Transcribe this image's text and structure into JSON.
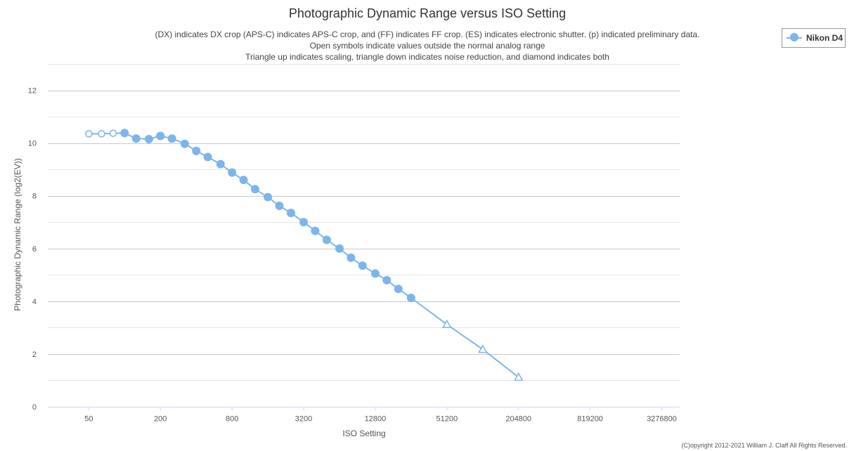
{
  "chart_data": {
    "type": "line",
    "title": "Photographic Dynamic Range versus ISO Setting",
    "subtitle": [
      "(DX) indicates DX crop (APS-C) indicates APS-C crop, and (FF) indicates FF crop. (ES) indicates electronic shutter. (p) indicated preliminary data.",
      "Open symbols indicate values outside the normal analog range",
      "Triangle up indicates scaling, triangle down indicates noise reduction, and diamond indicates both"
    ],
    "xlabel": "ISO Setting",
    "ylabel": "Photographic Dynamic Range (log2(EV))",
    "x_scale": "log2",
    "xlim": [
      22.6,
      4637000
    ],
    "ylim": [
      0,
      13
    ],
    "x_ticks": [
      50,
      200,
      800,
      3200,
      12800,
      51200,
      204800,
      819200,
      3276800
    ],
    "y_ticks": [
      0,
      2,
      4,
      6,
      8,
      10,
      12
    ],
    "grid": true,
    "legend_position": "top-right",
    "series": [
      {
        "name": "Nikon D4",
        "color": "#7cb5ec",
        "points": [
          {
            "x": 50,
            "y": 10.35,
            "marker": "circle-open"
          },
          {
            "x": 64,
            "y": 10.35,
            "marker": "circle-open"
          },
          {
            "x": 80,
            "y": 10.37,
            "marker": "circle-open"
          },
          {
            "x": 100,
            "y": 10.38,
            "marker": "circle"
          },
          {
            "x": 125,
            "y": 10.17,
            "marker": "circle"
          },
          {
            "x": 160,
            "y": 10.15,
            "marker": "circle"
          },
          {
            "x": 200,
            "y": 10.27,
            "marker": "circle"
          },
          {
            "x": 250,
            "y": 10.17,
            "marker": "circle"
          },
          {
            "x": 320,
            "y": 9.97,
            "marker": "circle"
          },
          {
            "x": 400,
            "y": 9.7,
            "marker": "circle"
          },
          {
            "x": 500,
            "y": 9.47,
            "marker": "circle"
          },
          {
            "x": 640,
            "y": 9.2,
            "marker": "circle"
          },
          {
            "x": 800,
            "y": 8.88,
            "marker": "circle"
          },
          {
            "x": 1000,
            "y": 8.6,
            "marker": "circle"
          },
          {
            "x": 1250,
            "y": 8.25,
            "marker": "circle"
          },
          {
            "x": 1600,
            "y": 7.95,
            "marker": "circle"
          },
          {
            "x": 2000,
            "y": 7.62,
            "marker": "circle"
          },
          {
            "x": 2500,
            "y": 7.35,
            "marker": "circle"
          },
          {
            "x": 3200,
            "y": 7.0,
            "marker": "circle"
          },
          {
            "x": 4000,
            "y": 6.67,
            "marker": "circle"
          },
          {
            "x": 5000,
            "y": 6.33,
            "marker": "circle"
          },
          {
            "x": 6400,
            "y": 6.0,
            "marker": "circle"
          },
          {
            "x": 8000,
            "y": 5.65,
            "marker": "circle"
          },
          {
            "x": 10000,
            "y": 5.35,
            "marker": "circle"
          },
          {
            "x": 12800,
            "y": 5.05,
            "marker": "circle"
          },
          {
            "x": 16000,
            "y": 4.8,
            "marker": "circle"
          },
          {
            "x": 20000,
            "y": 4.47,
            "marker": "circle"
          },
          {
            "x": 25600,
            "y": 4.13,
            "marker": "circle"
          },
          {
            "x": 51200,
            "y": 3.12,
            "marker": "triangle-up-open"
          },
          {
            "x": 102400,
            "y": 2.18,
            "marker": "triangle-up-open"
          },
          {
            "x": 204800,
            "y": 1.12,
            "marker": "triangle-up-open"
          }
        ]
      }
    ]
  },
  "credit": "(C)opyright 2012-2021 William J. Claff All Rights Reserved."
}
